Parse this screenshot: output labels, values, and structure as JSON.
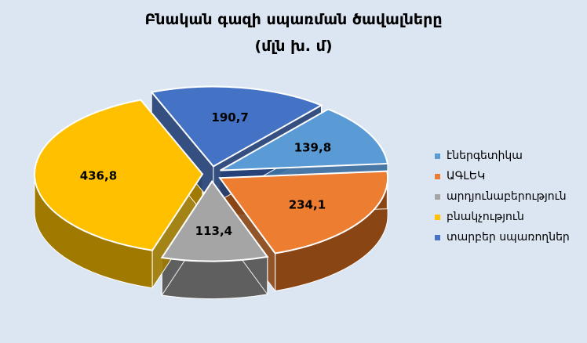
{
  "chart_data": {
    "type": "pie",
    "title": "Բնական գազի սպառման ծավալները",
    "subtitle": "(մլն խ. մ)",
    "categories": [
      "էներգետիկա",
      "ԱԳԼԵԿ",
      "արդյունաբերություն",
      "բնակչություն",
      "տարբեր սպառողներ"
    ],
    "values": [
      139.8,
      234.1,
      113.4,
      436.8,
      190.7
    ],
    "data_labels": [
      "139,8",
      "234,1",
      "113,4",
      "436,8",
      "190,7"
    ],
    "colors": [
      "#5b9bd5",
      "#ed7d31",
      "#a5a5a5",
      "#ffc000",
      "#4472c4"
    ],
    "side_colors": [
      "#3a6d9e",
      "#8a4514",
      "#5f5f5f",
      "#a07a00",
      "#233f75"
    ],
    "legend_position": "right",
    "style": "3d-exploded"
  }
}
